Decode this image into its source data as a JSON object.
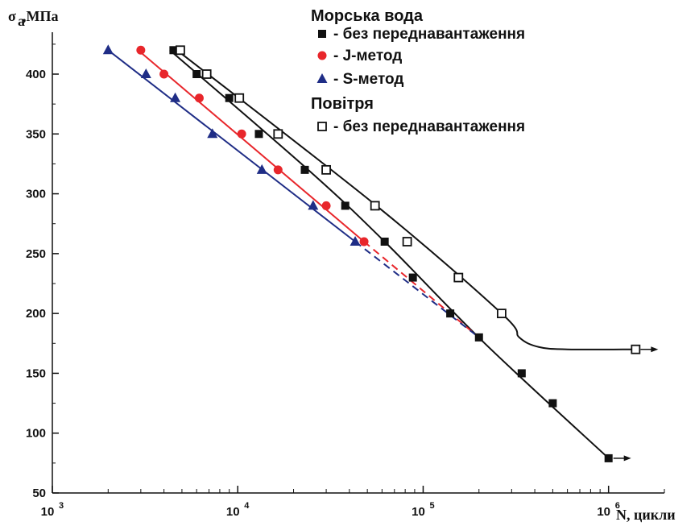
{
  "chart_data": {
    "type": "scatter",
    "x_scale": "log",
    "xlim": [
      1000,
      2000000
    ],
    "ylim": [
      50,
      435
    ],
    "ylabel_main": "σ",
    "ylabel_sub": "a",
    "ylabel_unit": " ,МПа",
    "xlabel_text": "N, цикли",
    "x_ticks": [
      {
        "value": 1000,
        "base": "10",
        "exp": "3"
      },
      {
        "value": 10000,
        "base": "10",
        "exp": "4"
      },
      {
        "value": 100000,
        "base": "10",
        "exp": "5"
      },
      {
        "value": 1000000,
        "base": "10",
        "exp": "6"
      }
    ],
    "y_ticks": [
      50,
      100,
      150,
      200,
      250,
      300,
      350,
      400
    ],
    "legend": {
      "group_sea": "Морська вода",
      "group_air": "Повітря",
      "items": [
        {
          "series": "sea_no_preload",
          "label": "- без переднавантаження"
        },
        {
          "series": "sea_J",
          "label": "- J-метод"
        },
        {
          "series": "sea_S",
          "label": "- S-метод"
        },
        {
          "series": "air_no_preload",
          "label": "- без переднавантаження"
        }
      ]
    },
    "series": [
      {
        "id": "sea_no_preload",
        "marker": "square-filled",
        "color": "#111111",
        "points": [
          [
            4500,
            420
          ],
          [
            6000,
            400
          ],
          [
            9000,
            380
          ],
          [
            13000,
            350
          ],
          [
            23000,
            320
          ],
          [
            38000,
            290
          ],
          [
            62000,
            260
          ],
          [
            88000,
            230
          ],
          [
            140000,
            200
          ],
          [
            200000,
            180
          ],
          [
            340000,
            150
          ],
          [
            500000,
            125
          ],
          [
            1000000,
            79
          ]
        ],
        "curve": [
          [
            4300,
            420
          ],
          [
            24000,
            320
          ],
          [
            62000,
            260
          ],
          [
            215000,
            175
          ],
          [
            1000000,
            79
          ]
        ],
        "runout": true
      },
      {
        "id": "sea_J",
        "marker": "circle-filled",
        "color": "#e8262b",
        "points": [
          [
            3000,
            420
          ],
          [
            4000,
            400
          ],
          [
            6200,
            380
          ],
          [
            10500,
            350
          ],
          [
            16500,
            320
          ],
          [
            30000,
            290
          ],
          [
            48000,
            260
          ]
        ],
        "curve": [
          [
            2900,
            420
          ],
          [
            48000,
            260
          ]
        ],
        "dashed": [
          [
            48000,
            260
          ],
          [
            200000,
            180
          ]
        ]
      },
      {
        "id": "sea_S",
        "marker": "triangle-filled",
        "color": "#1f2d86",
        "points": [
          [
            2000,
            420
          ],
          [
            3200,
            400
          ],
          [
            4600,
            380
          ],
          [
            7300,
            350
          ],
          [
            13500,
            320
          ],
          [
            25500,
            290
          ],
          [
            43000,
            260
          ]
        ],
        "curve": [
          [
            2000,
            420
          ],
          [
            43000,
            260
          ]
        ],
        "dashed": [
          [
            43000,
            260
          ],
          [
            200000,
            180
          ]
        ]
      },
      {
        "id": "air_no_preload",
        "marker": "square-open",
        "color": "#111111",
        "points": [
          [
            4900,
            420
          ],
          [
            6800,
            400
          ],
          [
            10200,
            380
          ],
          [
            16500,
            350
          ],
          [
            30000,
            320
          ],
          [
            55000,
            290
          ],
          [
            82000,
            260
          ],
          [
            155000,
            230
          ],
          [
            265000,
            200
          ],
          [
            1400000,
            170
          ]
        ],
        "curve": [
          [
            4700,
            420
          ],
          [
            56000,
            290
          ],
          [
            265000,
            200
          ],
          [
            330000,
            180
          ],
          [
            420000,
            172
          ],
          [
            600000,
            170
          ],
          [
            1430000,
            170
          ]
        ],
        "runout": true
      }
    ]
  }
}
